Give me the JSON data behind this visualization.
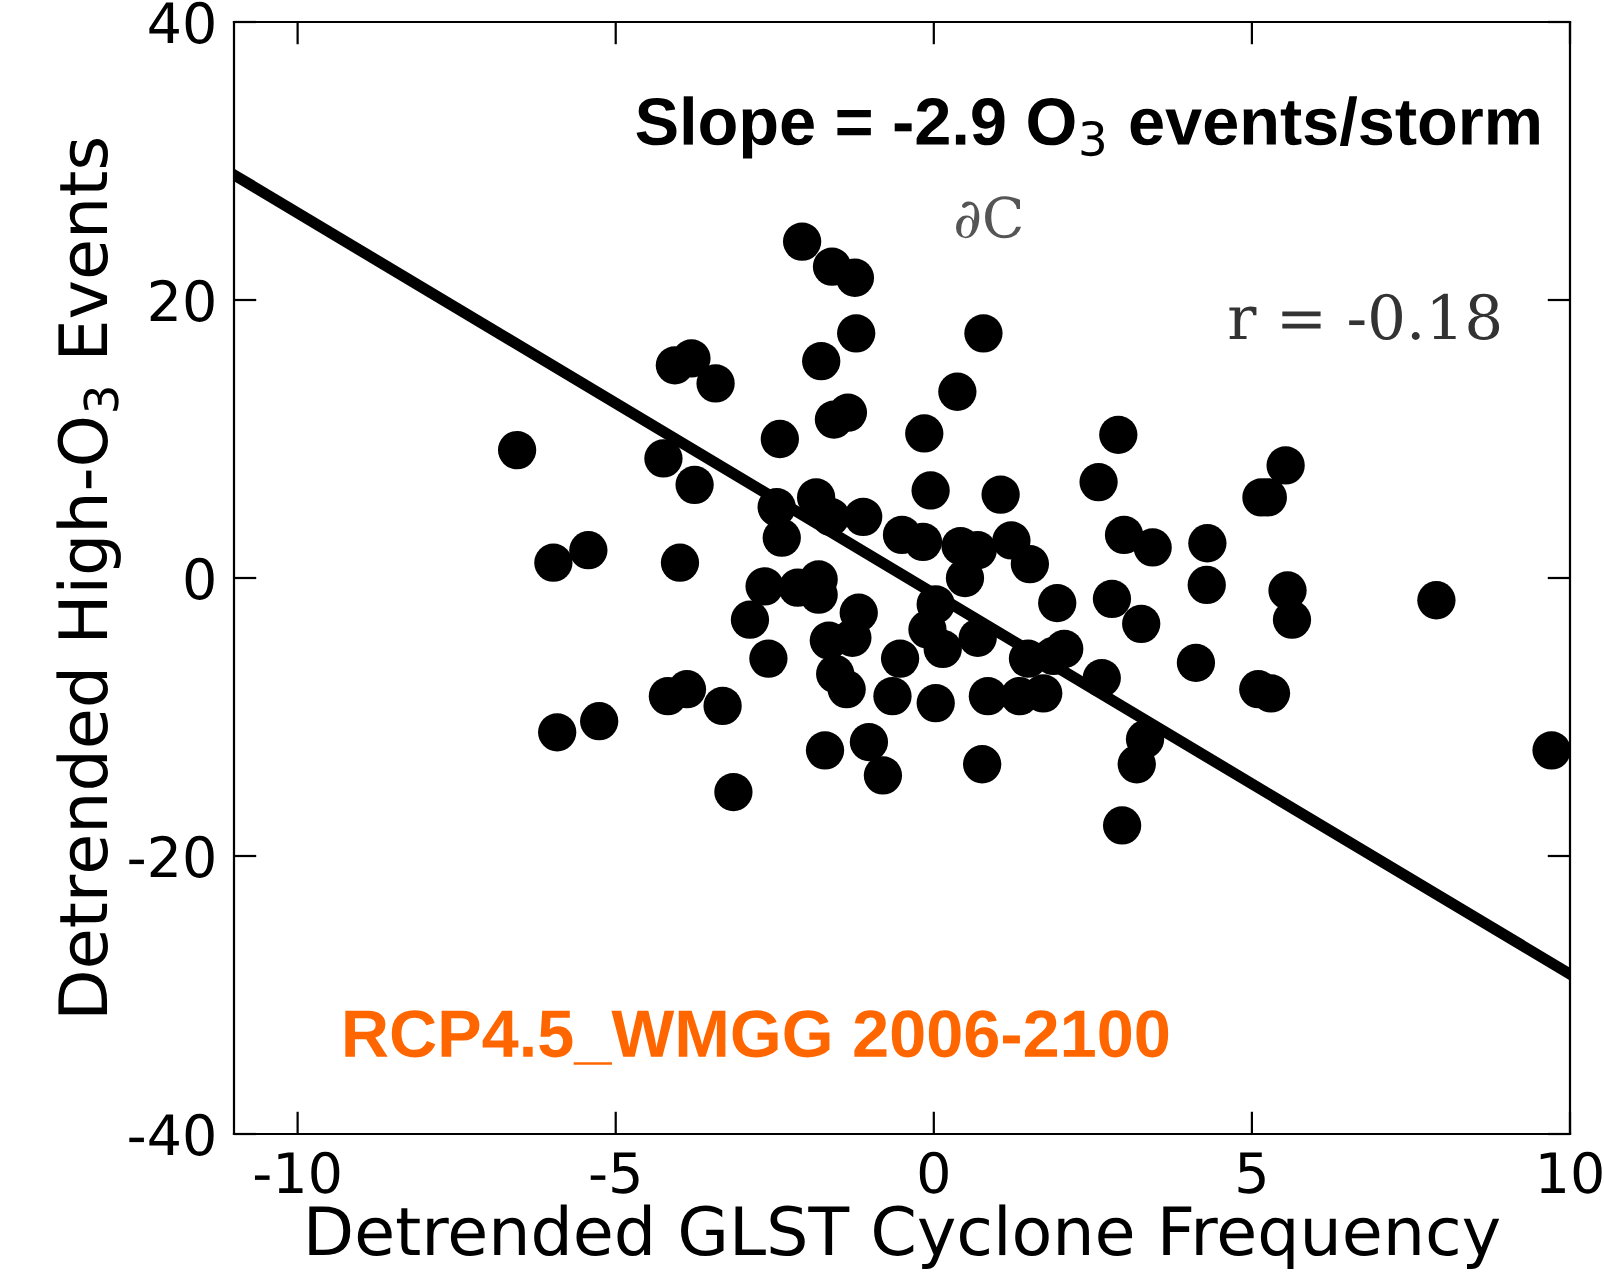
{
  "chart_data": {
    "type": "scatter",
    "xlabel": "Detrended GLST Cyclone Frequency",
    "ylabel": "Detrended High-O$_{3}$ Events",
    "annotations": [
      "Slope = -2.9 O$_{3}$ events/storm",
      "∂C",
      "r = -0.18",
      "RCP4.5_WMGG 2006-2100"
    ],
    "xlim": [
      -11,
      10
    ],
    "ylim": [
      -40,
      40
    ],
    "xticks": [
      -10,
      -5,
      0,
      5,
      10
    ],
    "yticks": [
      -40,
      -20,
      0,
      20,
      40
    ],
    "grid": false,
    "legend": false,
    "series": [
      {
        "color": "#000000",
        "marker": "circle",
        "x": [
          -2.07,
          -1.6,
          -1.24,
          -1.22,
          0.78,
          -4.07,
          -3.81,
          -3.43,
          -1.77,
          0.37,
          -1.57,
          -1.35,
          -6.55,
          -4.25,
          -3.76,
          -2.42,
          -0.15,
          2.9,
          2.59,
          -0.05,
          1.05,
          5.53,
          5.15,
          5.25,
          -2.47,
          -1.85,
          -2.39,
          -1.62,
          -1.11,
          -0.5,
          -0.17,
          0.42,
          0.69,
          0.49,
          1.22,
          1.51,
          2.99,
          3.44,
          4.3,
          -5.98,
          -5.43,
          -3.99,
          -2.66,
          -2.14,
          -1.81,
          -1.81,
          1.94,
          2.8,
          4.29,
          5.56,
          5.63,
          7.9,
          -2.89,
          -1.18,
          0.03,
          3.26,
          -2.6,
          -1.65,
          -1.28,
          -1.55,
          -1.37,
          -0.53,
          -0.1,
          0.14,
          0.69,
          1.48,
          1.88,
          2.05,
          2.64,
          4.12,
          -4.18,
          -3.88,
          -3.32,
          -5.92,
          -5.26,
          -0.65,
          0.03,
          0.85,
          1.35,
          1.72,
          5.1,
          5.3,
          -1.02,
          -1.71,
          -0.8,
          0.76,
          3.32,
          3.19,
          -3.15,
          2.96,
          9.71
        ],
        "values": [
          24.2,
          22.4,
          21.6,
          17.6,
          17.6,
          15.3,
          15.8,
          14.0,
          15.6,
          13.4,
          11.4,
          11.9,
          9.2,
          8.6,
          6.7,
          10.0,
          10.4,
          10.3,
          6.9,
          6.3,
          6.0,
          8.1,
          5.8,
          5.8,
          5.1,
          5.8,
          2.9,
          4.4,
          4.4,
          3.1,
          2.6,
          2.3,
          2.0,
          0.0,
          2.7,
          1.0,
          3.1,
          2.2,
          2.5,
          1.1,
          2.0,
          1.1,
          -0.6,
          -0.7,
          -0.1,
          -1.2,
          -1.8,
          -1.5,
          -0.5,
          -0.9,
          -3.0,
          -1.6,
          -3.0,
          -2.5,
          -1.9,
          -3.3,
          -5.8,
          -4.5,
          -4.3,
          -6.9,
          -8.0,
          -5.8,
          -3.7,
          -5.1,
          -4.3,
          -5.8,
          -5.6,
          -5.1,
          -7.2,
          -6.1,
          -8.5,
          -8.0,
          -9.2,
          -11.1,
          -10.3,
          -8.5,
          -9.0,
          -8.5,
          -8.5,
          -8.3,
          -8.0,
          -8.3,
          -11.8,
          -12.4,
          -14.2,
          -13.4,
          -11.6,
          -13.4,
          -15.4,
          -17.8,
          -12.4
        ]
      },
      {
        "type": "line",
        "color": "#000000",
        "marker": "none",
        "x": [
          -11,
          10
        ],
        "values": [
          29,
          -28.5
        ]
      }
    ]
  }
}
